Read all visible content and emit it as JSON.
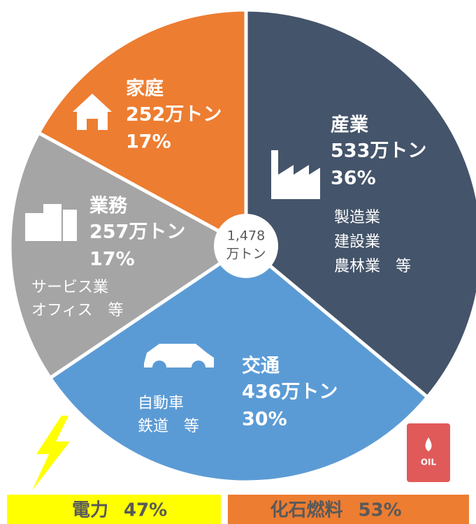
{
  "chart_data": {
    "type": "pie",
    "categories": [
      "産業",
      "交通",
      "業務",
      "家庭"
    ],
    "values": [
      533,
      436,
      257,
      252
    ],
    "value_labels": [
      "533万トン",
      "436万トン",
      "257万トン",
      "252万トン"
    ],
    "shares": [
      36,
      30,
      17,
      17
    ],
    "share_labels": [
      "36%",
      "30%",
      "17%",
      "17%"
    ],
    "colors": [
      "#44546a",
      "#5b9bd5",
      "#a5a5a5",
      "#ed7d31"
    ],
    "descriptions": [
      [
        "製造業",
        "建設業",
        "農林業　等"
      ],
      [
        "自動車",
        "鉄道　等"
      ],
      [
        "サービス業",
        "オフィス　等"
      ],
      []
    ],
    "total": 1478,
    "total_label": "1,478",
    "total_unit": "万トン",
    "energy_split": {
      "categories": [
        "電力",
        "化石燃料"
      ],
      "values": [
        47,
        53
      ],
      "value_labels": [
        "47%",
        "53%"
      ],
      "colors": [
        "#ffff00",
        "#ed7d31"
      ]
    }
  }
}
